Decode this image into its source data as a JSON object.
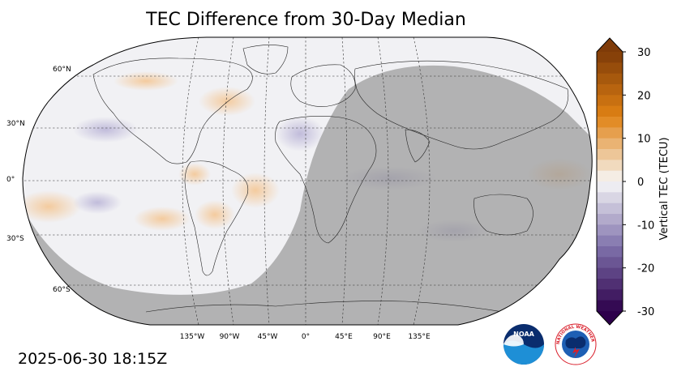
{
  "title": "TEC Difference from 30-Day Median",
  "timestamp": "2025-06-30 18:15Z",
  "map": {
    "projection": "Robinson",
    "lat_labels": [
      {
        "text": "60°N",
        "lat": 60
      },
      {
        "text": "30°N",
        "lat": 30
      },
      {
        "text": "0°",
        "lat": 0
      },
      {
        "text": "30°S",
        "lat": -30
      },
      {
        "text": "60°S",
        "lat": -60
      }
    ],
    "lon_labels": [
      {
        "text": "135°W",
        "lon": -135
      },
      {
        "text": "90°W",
        "lon": -90
      },
      {
        "text": "45°W",
        "lon": -45
      },
      {
        "text": "0°",
        "lon": 0
      },
      {
        "text": "45°E",
        "lon": 45
      },
      {
        "text": "90°E",
        "lon": 90
      },
      {
        "text": "135°E",
        "lon": 135
      }
    ],
    "night_shading_color": "#9a9a9a"
  },
  "colorbar": {
    "label": "Vertical TEC (TECU)",
    "ticks": [
      "30",
      "20",
      "10",
      "0",
      "-10",
      "-20",
      "-30"
    ],
    "min": -30,
    "max": 30,
    "colors": {
      "high": "#7f3b08",
      "mid_high": "#e08214",
      "neutral": "#f7f7f7",
      "mid_low": "#8073ac",
      "low": "#2d004b"
    }
  },
  "logos": {
    "noaa": "NOAA",
    "nws": "NATIONAL WEATHER SERVICE"
  }
}
